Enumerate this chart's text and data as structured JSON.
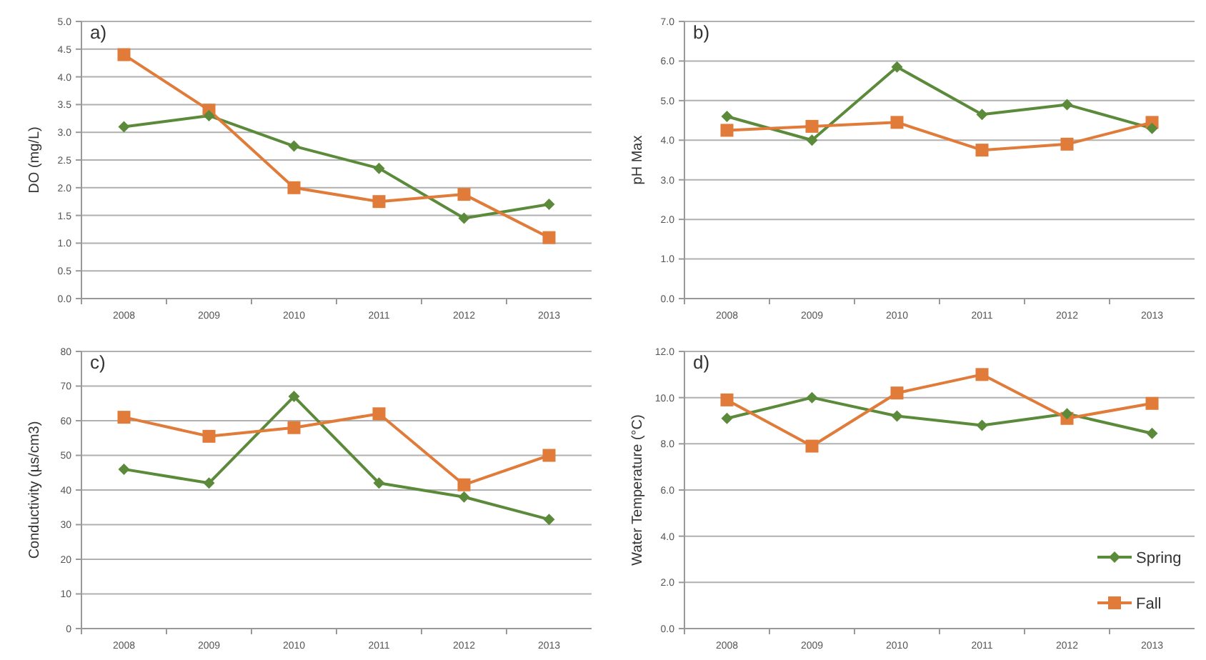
{
  "chart_data": [
    {
      "type": "line",
      "title": "a)",
      "ylabel": "DO (mg/L)",
      "categories": [
        "2008",
        "2009",
        "2010",
        "2011",
        "2012",
        "2013"
      ],
      "ylim": [
        0,
        5
      ],
      "yticks": [
        {
          "value": 0,
          "label": "0.0"
        },
        {
          "value": 0.5,
          "label": "0.5"
        },
        {
          "value": 1,
          "label": "1.0"
        },
        {
          "value": 1.5,
          "label": "1.5"
        },
        {
          "value": 2,
          "label": "2.0"
        },
        {
          "value": 2.5,
          "label": "2.5"
        },
        {
          "value": 3,
          "label": "3.0"
        },
        {
          "value": 3.5,
          "label": "3.5"
        },
        {
          "value": 4,
          "label": "4.0"
        },
        {
          "value": 4.5,
          "label": "4.5"
        },
        {
          "value": 5,
          "label": "5.0"
        }
      ],
      "grid": "y",
      "legend": false,
      "series": [
        {
          "color": "#5b8a3a",
          "marker": "diamond",
          "values": [
            3.1,
            3.3,
            2.75,
            2.35,
            1.45,
            1.7
          ]
        },
        {
          "color": "#e07b39",
          "marker": "square",
          "values": [
            4.4,
            3.4,
            2.0,
            1.75,
            1.88,
            1.1
          ]
        }
      ]
    },
    {
      "type": "line",
      "title": "b)",
      "ylabel": "pH Max",
      "categories": [
        "2008",
        "2009",
        "2010",
        "2011",
        "2012",
        "2013"
      ],
      "ylim": [
        0,
        7
      ],
      "yticks": [
        {
          "value": 0,
          "label": "0.0"
        },
        {
          "value": 1,
          "label": "1.0"
        },
        {
          "value": 2,
          "label": "2.0"
        },
        {
          "value": 3,
          "label": "3.0"
        },
        {
          "value": 4,
          "label": "4.0"
        },
        {
          "value": 5,
          "label": "5.0"
        },
        {
          "value": 6,
          "label": "6.0"
        },
        {
          "value": 7,
          "label": "7.0"
        }
      ],
      "grid": "y",
      "legend": false,
      "series": [
        {
          "color": "#5b8a3a",
          "marker": "diamond",
          "values": [
            4.6,
            4.0,
            5.85,
            4.65,
            4.9,
            4.3
          ]
        },
        {
          "color": "#e07b39",
          "marker": "square",
          "values": [
            4.25,
            4.35,
            4.45,
            3.75,
            3.9,
            4.45
          ]
        }
      ]
    },
    {
      "type": "line",
      "title": "c)",
      "ylabel": "Conductivity (µs/cm3)",
      "categories": [
        "2008",
        "2009",
        "2010",
        "2011",
        "2012",
        "2013"
      ],
      "ylim": [
        0,
        80
      ],
      "yticks": [
        0,
        10,
        20,
        30,
        40,
        50,
        60,
        70,
        80
      ],
      "grid": "y",
      "legend": false,
      "series": [
        {
          "color": "#5b8a3a",
          "marker": "diamond",
          "values": [
            46,
            42,
            67,
            42,
            38,
            31.5
          ]
        },
        {
          "color": "#e07b39",
          "marker": "square",
          "values": [
            61,
            55.5,
            58,
            62,
            41.5,
            50
          ]
        }
      ]
    },
    {
      "type": "line",
      "title": "d)",
      "ylabel": "Water Temperature (°C)",
      "categories": [
        "2008",
        "2009",
        "2010",
        "2011",
        "2012",
        "2013"
      ],
      "ylim": [
        0,
        12
      ],
      "yticks": [
        {
          "value": 0,
          "label": "0.0"
        },
        {
          "value": 2,
          "label": "2.0"
        },
        {
          "value": 4,
          "label": "4.0"
        },
        {
          "value": 6,
          "label": "6.0"
        },
        {
          "value": 8,
          "label": "8.0"
        },
        {
          "value": 10,
          "label": "10.0"
        },
        {
          "value": 12,
          "label": "12.0"
        }
      ],
      "grid": "y",
      "legend": "bottom right",
      "series": [
        {
          "name": "Spring",
          "color": "#5b8a3a",
          "marker": "diamond",
          "values": [
            9.1,
            10.0,
            9.2,
            8.8,
            9.3,
            8.45
          ]
        },
        {
          "name": "Fall",
          "color": "#e07b39",
          "marker": "square",
          "values": [
            9.9,
            7.9,
            10.2,
            11.0,
            9.1,
            9.75
          ]
        }
      ]
    }
  ]
}
